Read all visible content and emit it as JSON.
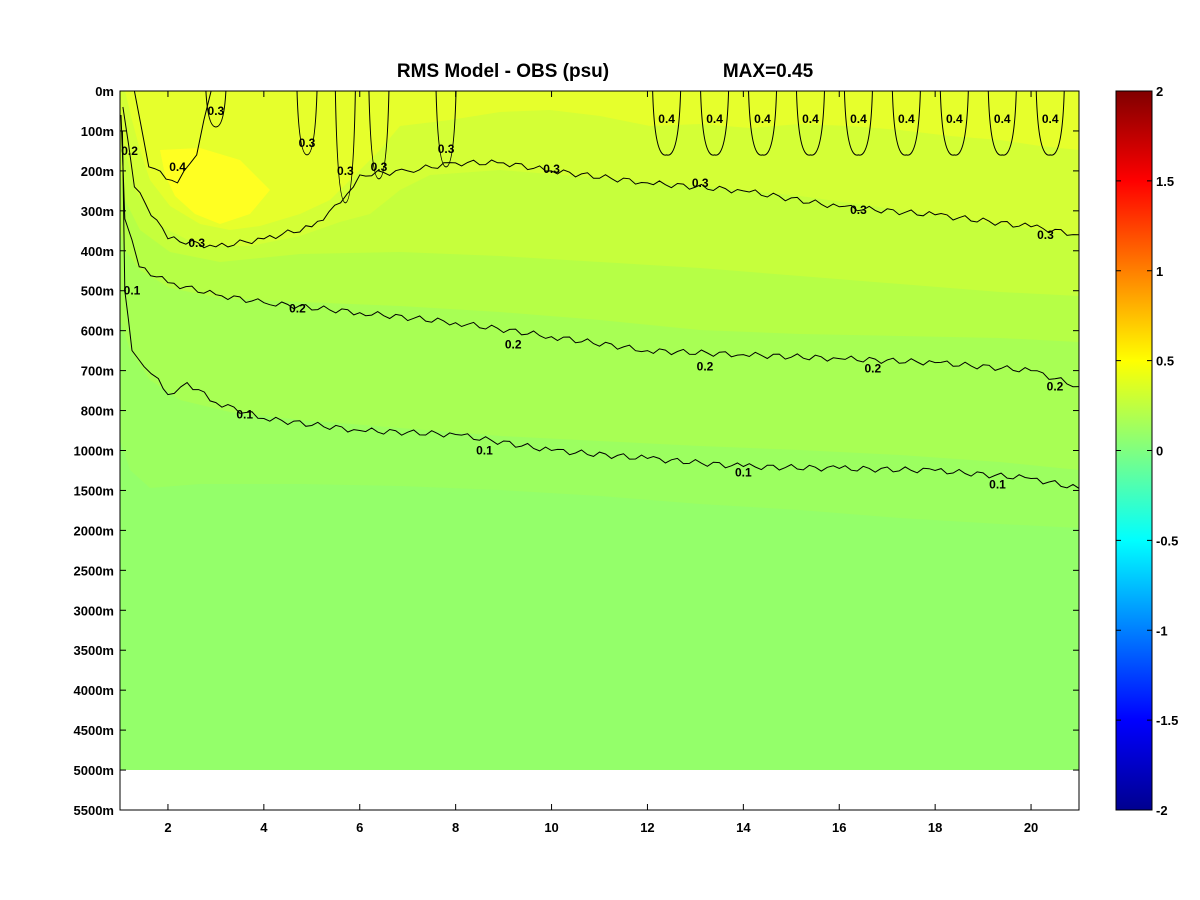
{
  "chart_data": {
    "type": "heatmap",
    "title": "RMS Model - OBS (psu)",
    "max_label": "MAX=0.45",
    "x_ticks": [
      2,
      4,
      6,
      8,
      10,
      12,
      14,
      16,
      18,
      20
    ],
    "xlim": [
      1,
      21
    ],
    "y_ticks": [
      "0m",
      "100m",
      "200m",
      "300m",
      "400m",
      "500m",
      "600m",
      "700m",
      "800m",
      "1000m",
      "1500m",
      "2000m",
      "2500m",
      "3000m",
      "3500m",
      "4000m",
      "4500m",
      "5000m",
      "5500m"
    ],
    "data_bottom_label": "5000m",
    "colormap": "jet",
    "colorbar": {
      "ticks": [
        2,
        1.5,
        1,
        0.5,
        0,
        -0.5,
        -1,
        -1.5,
        -2
      ],
      "range": [
        -2,
        2
      ]
    },
    "bands": [
      {
        "color": "#ffff22",
        "value_range": [
          0.4,
          0.45
        ]
      },
      {
        "color": "#e6ff2c",
        "value_range": [
          0.35,
          0.4
        ]
      },
      {
        "color": "#d4ff36",
        "value_range": [
          0.3,
          0.35
        ]
      },
      {
        "color": "#c6ff3c",
        "value_range": [
          0.25,
          0.3
        ]
      },
      {
        "color": "#b6ff46",
        "value_range": [
          0.2,
          0.25
        ]
      },
      {
        "color": "#a8ff54",
        "value_range": [
          0.15,
          0.2
        ]
      },
      {
        "color": "#9cff60",
        "value_range": [
          0.1,
          0.15
        ]
      },
      {
        "color": "#94ff6a",
        "value_range": [
          0.0,
          0.1
        ]
      }
    ],
    "contours": [
      {
        "level": "0.1",
        "points": [
          [
            1.05,
            1.0
          ],
          [
            1.1,
            5
          ],
          [
            1.25,
            6.5
          ],
          [
            1.5,
            6.9
          ],
          [
            1.8,
            7.2
          ],
          [
            2,
            7.6
          ],
          [
            2.4,
            7.3
          ],
          [
            3,
            7.8
          ],
          [
            4,
            8.2
          ],
          [
            6,
            8.5
          ],
          [
            8,
            8.6
          ],
          [
            10,
            9.0
          ],
          [
            12,
            9.2
          ],
          [
            14,
            9.4
          ],
          [
            16,
            9.45
          ],
          [
            18,
            9.5
          ],
          [
            20,
            9.7
          ],
          [
            21,
            9.95
          ]
        ]
      },
      {
        "level": "0.2",
        "points": [
          [
            1.02,
            0.6
          ],
          [
            1.1,
            3.2
          ],
          [
            1.4,
            4.4
          ],
          [
            2,
            4.8
          ],
          [
            3,
            5.1
          ],
          [
            4,
            5.3
          ],
          [
            6,
            5.55
          ],
          [
            8,
            5.8
          ],
          [
            10,
            6.15
          ],
          [
            12,
            6.5
          ],
          [
            14,
            6.6
          ],
          [
            16,
            6.7
          ],
          [
            18,
            6.8
          ],
          [
            20,
            7.0
          ],
          [
            21,
            7.4
          ]
        ]
      },
      {
        "level": "0.3",
        "points": [
          [
            1.06,
            0.4
          ],
          [
            1.3,
            2.4
          ],
          [
            2,
            3.7
          ],
          [
            3,
            3.9
          ],
          [
            4,
            3.7
          ],
          [
            5,
            3.4
          ],
          [
            5.6,
            2.8
          ],
          [
            6,
            2.1
          ],
          [
            7,
            2.0
          ],
          [
            8,
            1.8
          ],
          [
            9,
            1.8
          ],
          [
            10,
            2.0
          ],
          [
            12,
            2.3
          ],
          [
            14,
            2.5
          ],
          [
            16,
            2.9
          ],
          [
            18,
            3.1
          ],
          [
            20,
            3.4
          ],
          [
            21,
            3.6
          ]
        ]
      },
      {
        "level": "0.4",
        "points": [
          [
            1.3,
            0
          ],
          [
            1.6,
            1.9
          ],
          [
            2.2,
            2.3
          ],
          [
            2.6,
            1.6
          ],
          [
            2.9,
            0
          ]
        ]
      }
    ],
    "contour_labels": [
      {
        "text": "0.1",
        "x": 1.25,
        "y": 5.0
      },
      {
        "text": "0.1",
        "x": 3.6,
        "y": 8.1
      },
      {
        "text": "0.1",
        "x": 8.6,
        "y": 9.0
      },
      {
        "text": "0.1",
        "x": 14.0,
        "y": 9.55
      },
      {
        "text": "0.1",
        "x": 19.3,
        "y": 9.85
      },
      {
        "text": "0.2",
        "x": 1.2,
        "y": 1.5
      },
      {
        "text": "0.2",
        "x": 4.7,
        "y": 5.45
      },
      {
        "text": "0.2",
        "x": 9.2,
        "y": 6.35
      },
      {
        "text": "0.2",
        "x": 13.2,
        "y": 6.9
      },
      {
        "text": "0.2",
        "x": 16.7,
        "y": 6.95
      },
      {
        "text": "0.2",
        "x": 20.5,
        "y": 7.4
      },
      {
        "text": "0.3",
        "x": 2.6,
        "y": 3.8
      },
      {
        "text": "0.3",
        "x": 4.9,
        "y": 1.3
      },
      {
        "text": "0.3",
        "x": 5.7,
        "y": 2.0
      },
      {
        "text": "0.3",
        "x": 6.4,
        "y": 1.9
      },
      {
        "text": "0.3",
        "x": 7.8,
        "y": 1.45
      },
      {
        "text": "0.3",
        "x": 10.0,
        "y": 1.95
      },
      {
        "text": "0.3",
        "x": 13.1,
        "y": 2.3
      },
      {
        "text": "0.3",
        "x": 16.4,
        "y": 2.98
      },
      {
        "text": "0.3",
        "x": 20.3,
        "y": 3.6
      },
      {
        "text": "0.3",
        "x": 3.0,
        "y": 0.5
      },
      {
        "text": "0.4",
        "x": 2.2,
        "y": 1.9
      },
      {
        "text": "0.4",
        "x": 12.4,
        "y": 0.7
      },
      {
        "text": "0.4",
        "x": 13.4,
        "y": 0.7
      },
      {
        "text": "0.4",
        "x": 14.4,
        "y": 0.7
      },
      {
        "text": "0.4",
        "x": 15.4,
        "y": 0.7
      },
      {
        "text": "0.4",
        "x": 16.4,
        "y": 0.7
      },
      {
        "text": "0.4",
        "x": 17.4,
        "y": 0.7
      },
      {
        "text": "0.4",
        "x": 18.4,
        "y": 0.7
      },
      {
        "text": "0.4",
        "x": 19.4,
        "y": 0.7
      },
      {
        "text": "0.4",
        "x": 20.4,
        "y": 0.7
      }
    ]
  }
}
